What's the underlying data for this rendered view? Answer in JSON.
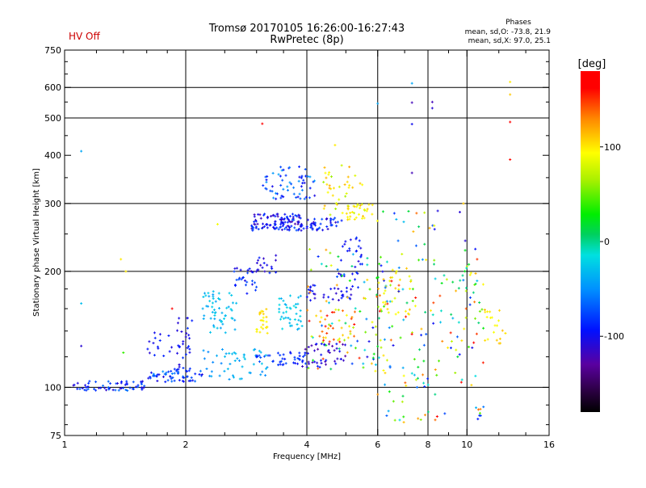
{
  "status_label": "HV Off",
  "title_line1": "Tromsø 20170105 16:26:00-16:27:43",
  "title_line2": "RwPretec (8p)",
  "phases_block": {
    "heading": "Phases",
    "line_o": "mean, sd,O: -73.8, 21.9",
    "line_x": "mean, sd,X:  97.0, 25.1"
  },
  "colorbar": {
    "label": "[deg]",
    "ticks": [
      {
        "value": 100,
        "label": "100"
      },
      {
        "value": 0,
        "label": "0"
      },
      {
        "value": -100,
        "label": "-100"
      }
    ],
    "range": [
      -180,
      180
    ]
  },
  "colors": {
    "status": "#cc0000",
    "grid": "#000000",
    "background": "#ffffff"
  },
  "chart_data": {
    "type": "scatter",
    "xlabel": "Frequency [MHz]",
    "ylabel": "Stationary phase Virtual Height [km]",
    "xscale": "log",
    "yscale": "log",
    "xlim": [
      1,
      16
    ],
    "ylim": [
      75,
      750
    ],
    "x_ticks": [
      1,
      2,
      4,
      6,
      8,
      10,
      16
    ],
    "x_tick_labels": [
      "1",
      "2",
      "4",
      "6",
      "8",
      "10",
      "16"
    ],
    "x_minor_ticks": [
      1.2,
      1.4,
      1.6,
      1.8,
      2.5,
      3,
      3.5,
      5,
      7,
      9,
      12,
      14
    ],
    "y_ticks": [
      75,
      100,
      200,
      300,
      400,
      500,
      600,
      750
    ],
    "y_tick_labels": [
      "75",
      "100",
      "200",
      "300",
      "400",
      "500",
      "600",
      "750"
    ],
    "y_minor_ticks": [
      80,
      90,
      120,
      140,
      160,
      180,
      250,
      350,
      450,
      550,
      650,
      700
    ],
    "grid_x": [
      2,
      4,
      6,
      8,
      10
    ],
    "grid_y": [
      100,
      200,
      300,
      500,
      600
    ],
    "grid": true,
    "color_variable": "phase",
    "color_range": [
      -180,
      180
    ],
    "clusters": [
      {
        "fmin": 1.05,
        "fmax": 1.6,
        "hmin": 98,
        "hmax": 104,
        "phase": [
          -115,
          -60
        ],
        "n": 60
      },
      {
        "fmin": 1.6,
        "fmax": 2.2,
        "hmin": 103,
        "hmax": 112,
        "phase": [
          -110,
          -50
        ],
        "n": 60
      },
      {
        "fmin": 1.9,
        "fmax": 2.1,
        "hmin": 112,
        "hmax": 152,
        "phase": [
          -110,
          -80
        ],
        "n": 25
      },
      {
        "fmin": 1.6,
        "fmax": 2.0,
        "hmin": 120,
        "hmax": 140,
        "phase": [
          -110,
          -85
        ],
        "n": 18
      },
      {
        "fmin": 2.2,
        "fmax": 2.7,
        "hmin": 138,
        "hmax": 178,
        "phase": [
          -45,
          -20
        ],
        "n": 55
      },
      {
        "fmin": 2.2,
        "fmax": 3.2,
        "hmin": 104,
        "hmax": 126,
        "phase": [
          -55,
          -25
        ],
        "n": 50
      },
      {
        "fmin": 2.6,
        "fmax": 3.0,
        "hmin": 175,
        "hmax": 205,
        "phase": [
          -110,
          -70
        ],
        "n": 25
      },
      {
        "fmin": 3.0,
        "fmax": 3.2,
        "hmin": 138,
        "hmax": 160,
        "phase": [
          90,
          110
        ],
        "n": 25
      },
      {
        "fmin": 3.0,
        "fmax": 4.0,
        "hmin": 114,
        "hmax": 124,
        "phase": [
          -100,
          -70
        ],
        "n": 40
      },
      {
        "fmin": 3.4,
        "fmax": 3.9,
        "hmin": 140,
        "hmax": 175,
        "phase": [
          -40,
          -15
        ],
        "n": 40
      },
      {
        "fmin": 2.9,
        "fmax": 3.4,
        "hmin": 198,
        "hmax": 222,
        "phase": [
          -120,
          -85
        ],
        "n": 20
      },
      {
        "fmin": 2.9,
        "fmax": 3.9,
        "hmin": 255,
        "hmax": 282,
        "phase": [
          -125,
          -75
        ],
        "n": 85
      },
      {
        "fmin": 3.3,
        "fmax": 4.9,
        "hmin": 255,
        "hmax": 275,
        "phase": [
          -115,
          -70
        ],
        "n": 70
      },
      {
        "fmin": 3.1,
        "fmax": 4.2,
        "hmin": 308,
        "hmax": 375,
        "phase": [
          -110,
          -40
        ],
        "n": 60
      },
      {
        "fmin": 4.0,
        "fmax": 5.2,
        "hmin": 168,
        "hmax": 185,
        "phase": [
          -115,
          -85
        ],
        "n": 35
      },
      {
        "fmin": 3.9,
        "fmax": 5.0,
        "hmin": 112,
        "hmax": 130,
        "phase": [
          -130,
          -90
        ],
        "n": 45
      },
      {
        "fmin": 4.3,
        "fmax": 5.3,
        "hmin": 130,
        "hmax": 160,
        "phase": [
          60,
          160
        ],
        "n": 40
      },
      {
        "fmin": 4.4,
        "fmax": 5.6,
        "hmin": 275,
        "hmax": 380,
        "phase": [
          60,
          120
        ],
        "n": 45
      },
      {
        "fmin": 4.8,
        "fmax": 5.5,
        "hmin": 190,
        "hmax": 250,
        "phase": [
          -110,
          -80
        ],
        "n": 30
      },
      {
        "fmin": 5.0,
        "fmax": 6.0,
        "hmin": 270,
        "hmax": 300,
        "phase": [
          85,
          110
        ],
        "n": 25
      },
      {
        "fmin": 4.0,
        "fmax": 6.5,
        "hmin": 110,
        "hmax": 230,
        "phase": [
          -110,
          170
        ],
        "n": 90
      },
      {
        "fmin": 6.0,
        "fmax": 7.5,
        "hmin": 150,
        "hmax": 210,
        "phase": [
          85,
          115
        ],
        "n": 30
      },
      {
        "fmin": 5.8,
        "fmax": 11.0,
        "hmin": 100,
        "hmax": 200,
        "phase": [
          -110,
          170
        ],
        "n": 120
      },
      {
        "fmin": 6.0,
        "fmax": 9.0,
        "hmin": 80,
        "hmax": 100,
        "phase": [
          -120,
          170
        ],
        "n": 20
      },
      {
        "fmin": 6.0,
        "fmax": 8.5,
        "hmin": 200,
        "hmax": 290,
        "phase": [
          -110,
          150
        ],
        "n": 25
      },
      {
        "fmin": 11.0,
        "fmax": 12.5,
        "hmin": 130,
        "hmax": 160,
        "phase": [
          90,
          115
        ],
        "n": 20
      },
      {
        "fmin": 10.5,
        "fmax": 11.2,
        "hmin": 78,
        "hmax": 90,
        "phase": [
          -120,
          160
        ],
        "n": 8
      },
      {
        "fmin": 9.8,
        "fmax": 10.6,
        "hmin": 170,
        "hmax": 230,
        "phase": [
          -110,
          120
        ],
        "n": 12
      }
    ],
    "isolated_points": [
      {
        "x": 1.1,
        "y": 410,
        "phase": -40
      },
      {
        "x": 1.1,
        "y": 165,
        "phase": -30
      },
      {
        "x": 1.1,
        "y": 128,
        "phase": -110
      },
      {
        "x": 1.38,
        "y": 215,
        "phase": 100
      },
      {
        "x": 1.42,
        "y": 200,
        "phase": 100
      },
      {
        "x": 1.4,
        "y": 123,
        "phase": 40
      },
      {
        "x": 1.85,
        "y": 160,
        "phase": 170
      },
      {
        "x": 2.4,
        "y": 265,
        "phase": 90
      },
      {
        "x": 3.1,
        "y": 483,
        "phase": 170
      },
      {
        "x": 4.7,
        "y": 425,
        "phase": 100
      },
      {
        "x": 6.0,
        "y": 545,
        "phase": -40
      },
      {
        "x": 7.3,
        "y": 615,
        "phase": -40
      },
      {
        "x": 7.3,
        "y": 548,
        "phase": -120
      },
      {
        "x": 7.3,
        "y": 482,
        "phase": -100
      },
      {
        "x": 8.2,
        "y": 550,
        "phase": -120
      },
      {
        "x": 8.2,
        "y": 530,
        "phase": -110
      },
      {
        "x": 7.3,
        "y": 360,
        "phase": -120
      },
      {
        "x": 12.8,
        "y": 620,
        "phase": 100
      },
      {
        "x": 12.8,
        "y": 575,
        "phase": 110
      },
      {
        "x": 12.8,
        "y": 488,
        "phase": 170
      },
      {
        "x": 12.8,
        "y": 390,
        "phase": 160
      },
      {
        "x": 9.8,
        "y": 300,
        "phase": 110
      },
      {
        "x": 9.6,
        "y": 285,
        "phase": -110
      },
      {
        "x": 9.9,
        "y": 240,
        "phase": -110
      },
      {
        "x": 10.6,
        "y": 215,
        "phase": 150
      }
    ]
  }
}
